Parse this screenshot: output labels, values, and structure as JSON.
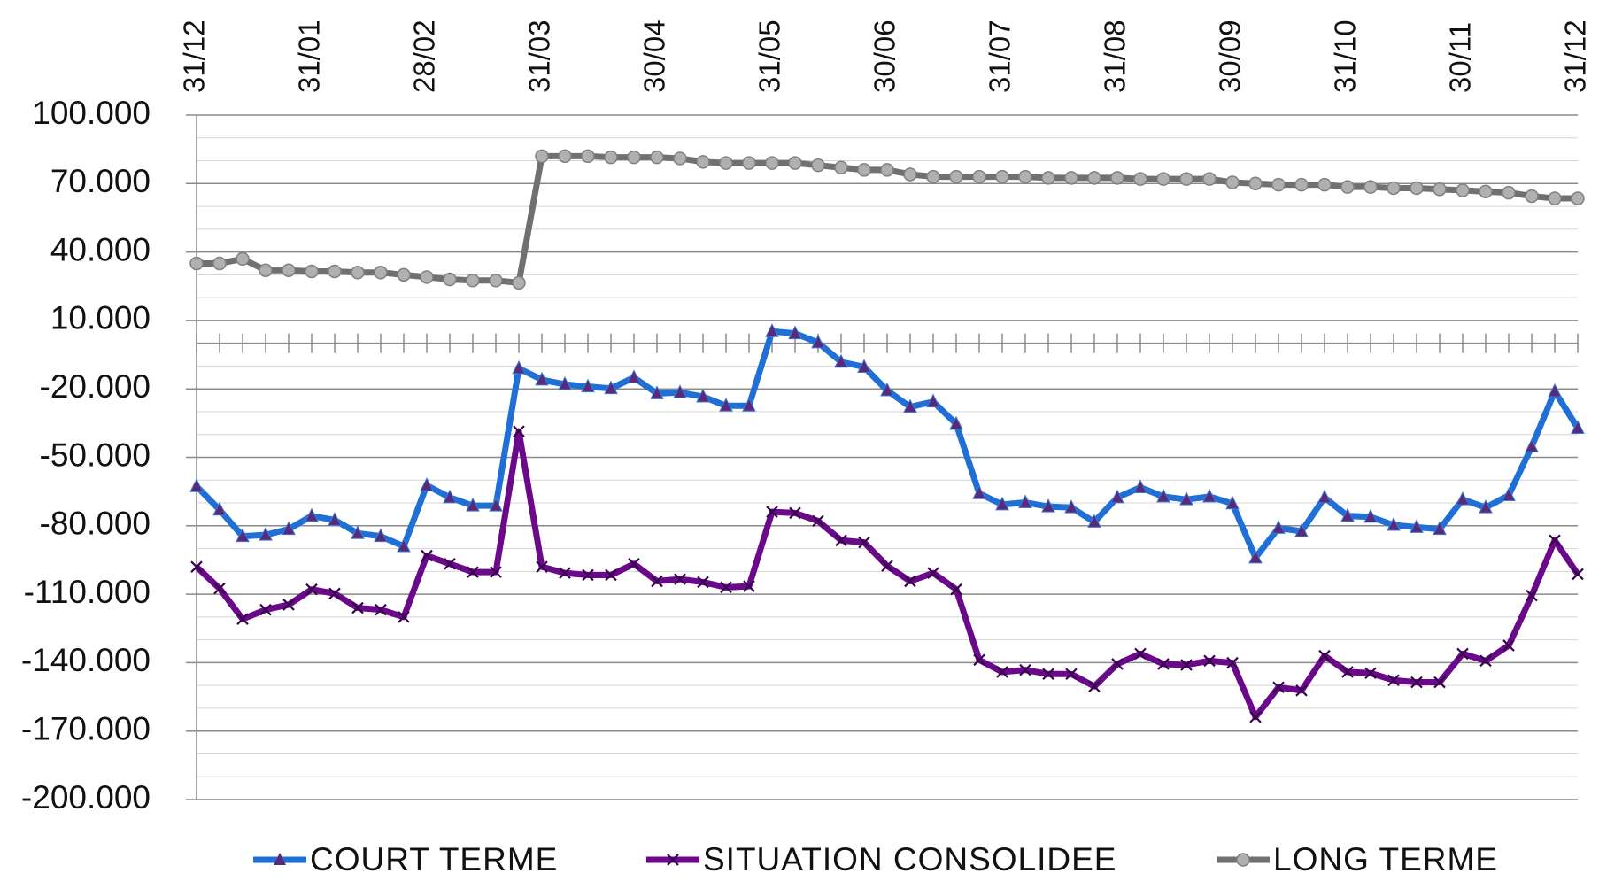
{
  "chart_data": {
    "type": "line",
    "categories": [
      "31/12",
      null,
      null,
      null,
      null,
      "31/01",
      null,
      null,
      null,
      null,
      "28/02",
      null,
      null,
      null,
      null,
      "31/03",
      null,
      null,
      null,
      null,
      "30/04",
      null,
      null,
      null,
      null,
      "31/05",
      null,
      null,
      null,
      null,
      "30/06",
      null,
      null,
      null,
      null,
      "31/07",
      null,
      null,
      null,
      null,
      "31/08",
      null,
      null,
      null,
      null,
      "30/09",
      null,
      null,
      null,
      null,
      "31/10",
      null,
      null,
      null,
      null,
      "30/11",
      null,
      null,
      null,
      null,
      "31/12"
    ],
    "ylim": [
      -200000,
      100000
    ],
    "yticks": [
      {
        "value": 100000,
        "label": "100.000"
      },
      {
        "value": 70000,
        "label": "70.000"
      },
      {
        "value": 40000,
        "label": "40.000"
      },
      {
        "value": 10000,
        "label": "10.000"
      },
      {
        "value": -20000,
        "label": "-20.000"
      },
      {
        "value": -50000,
        "label": "-50.000"
      },
      {
        "value": -80000,
        "label": "-80.000"
      },
      {
        "value": -110000,
        "label": "-110.000"
      },
      {
        "value": -140000,
        "label": "-140.000"
      },
      {
        "value": -170000,
        "label": "-170.000"
      },
      {
        "value": -200000,
        "label": "-200.000"
      }
    ],
    "minor_yticks": [
      90000,
      80000,
      60000,
      50000,
      30000,
      20000,
      0,
      -10000,
      -30000,
      -40000,
      -60000,
      -70000,
      -90000,
      -100000,
      -120000,
      -130000,
      -150000,
      -160000,
      -180000,
      -190000
    ],
    "grid": true,
    "negative_tick_color": "#e01010",
    "legend": "bottom",
    "series": [
      {
        "name": "COURT TERME",
        "color": "#1f6fd6",
        "marker": "triangle",
        "marker_color": "#5a2a7a",
        "values": [
          -62700,
          -73000,
          -84600,
          -84000,
          -81500,
          -75700,
          -77500,
          -83300,
          -84600,
          -89000,
          -62300,
          -67600,
          -71200,
          -71200,
          -11000,
          -16000,
          -18000,
          -19000,
          -19800,
          -15000,
          -22000,
          -21600,
          -23400,
          -27400,
          -27400,
          5200,
          4300,
          300,
          -8200,
          -10400,
          -20700,
          -27900,
          -25600,
          -35400,
          -65800,
          -70700,
          -69800,
          -71600,
          -72000,
          -78300,
          -67600,
          -63200,
          -67200,
          -68500,
          -67200,
          -70300,
          -94000,
          -81000,
          -82400,
          -67600,
          -75700,
          -76100,
          -79700,
          -80600,
          -81500,
          -68500,
          -72000,
          -66700,
          -45300,
          -21100,
          -37200
        ]
      },
      {
        "name": "SITUATION CONSOLIDEE",
        "color": "#6a0a8a",
        "marker": "x",
        "marker_color": "#3a0050",
        "values": [
          -98000,
          -107500,
          -120900,
          -116800,
          -114600,
          -107900,
          -109700,
          -116000,
          -116800,
          -120000,
          -93100,
          -96700,
          -100300,
          -100300,
          -38600,
          -98000,
          -100700,
          -101600,
          -101600,
          -96700,
          -104300,
          -103400,
          -104700,
          -107000,
          -106500,
          -73900,
          -74400,
          -77900,
          -86400,
          -87300,
          -97600,
          -104300,
          -100700,
          -107900,
          -138800,
          -144100,
          -143200,
          -145000,
          -145000,
          -150400,
          -140600,
          -136100,
          -140600,
          -141000,
          -139200,
          -140100,
          -163800,
          -150800,
          -152200,
          -137000,
          -144100,
          -144600,
          -147700,
          -148600,
          -148600,
          -136100,
          -139200,
          -132500,
          -110600,
          -86400,
          -101200
        ]
      },
      {
        "name": "LONG TERME",
        "color": "#707070",
        "marker": "circle",
        "marker_color": "#b0b0b0",
        "values": [
          35000,
          35000,
          37000,
          32000,
          32000,
          31500,
          31500,
          31000,
          31000,
          30000,
          29000,
          28000,
          27500,
          27500,
          26500,
          82000,
          82000,
          82000,
          81500,
          81500,
          81500,
          81000,
          79500,
          79000,
          79000,
          79000,
          79000,
          78000,
          77000,
          76000,
          76000,
          74000,
          73000,
          73000,
          73000,
          73000,
          73000,
          72500,
          72500,
          72500,
          72500,
          72000,
          72000,
          72000,
          72000,
          70500,
          70000,
          69500,
          69500,
          69500,
          68500,
          68500,
          68000,
          68000,
          67500,
          67000,
          66500,
          66000,
          64500,
          63500,
          63500
        ]
      }
    ]
  }
}
